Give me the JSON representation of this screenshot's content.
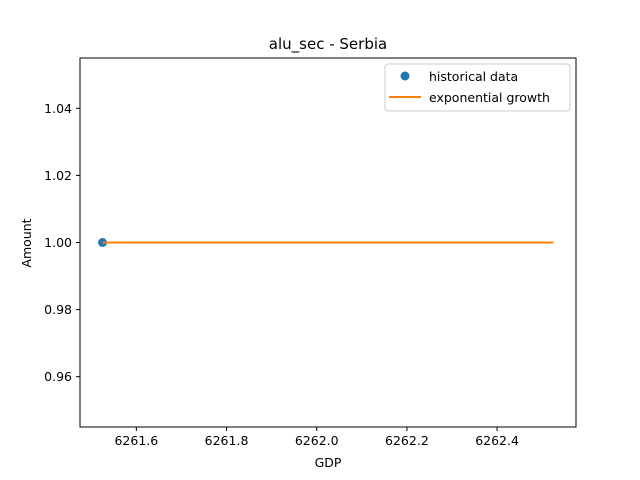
{
  "chart_data": {
    "type": "line",
    "title": "alu_sec - Serbia",
    "xlabel": "GDP",
    "ylabel": "Amount",
    "xlim": [
      6261.475,
      6262.575
    ],
    "ylim": [
      0.945,
      1.055
    ],
    "x_ticks": [
      6261.6,
      6261.8,
      6262.0,
      6262.2,
      6262.4
    ],
    "x_tick_labels": [
      "6261.6",
      "6261.8",
      "6262.0",
      "6262.2",
      "6262.4"
    ],
    "y_ticks": [
      0.96,
      0.98,
      1.0,
      1.02,
      1.04
    ],
    "y_tick_labels": [
      "0.96",
      "0.98",
      "1.00",
      "1.02",
      "1.04"
    ],
    "grid": false,
    "legend_position": "top-right",
    "series": [
      {
        "name": "historical data",
        "kind": "scatter",
        "color": "#1f77b4",
        "x": [
          6261.525
        ],
        "y": [
          1.0
        ]
      },
      {
        "name": "exponential growth",
        "kind": "line",
        "color": "#ff7f0e",
        "x": [
          6261.525,
          6262.525
        ],
        "y": [
          1.0,
          1.0
        ]
      }
    ]
  }
}
